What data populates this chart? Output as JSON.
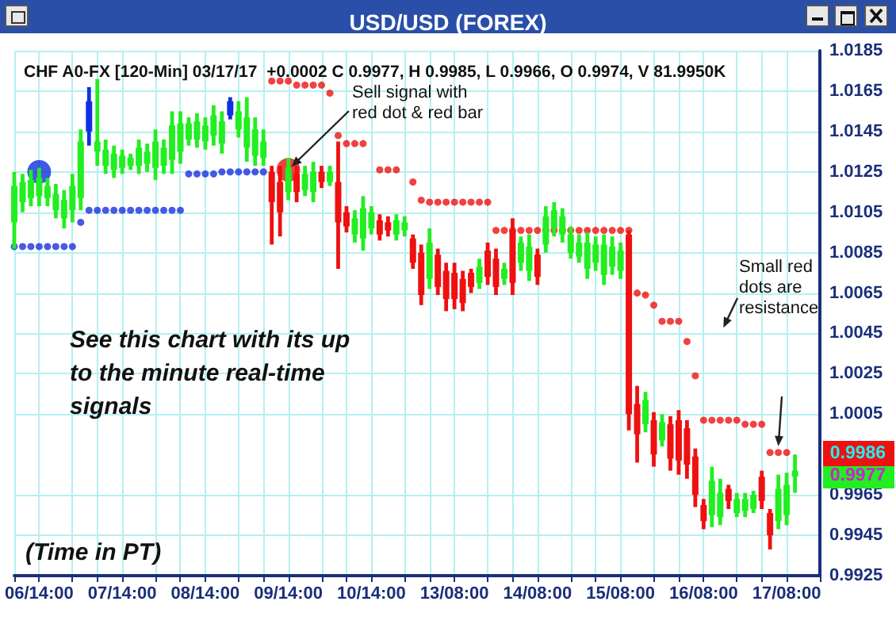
{
  "chart_data": {
    "type": "candlestick",
    "title": "USD/USD (FOREX)",
    "subtitle": "CHF A0-FX [120-Min] 03/17/17  +0.0002 C 0.9977, H 0.9985, L 0.9966, O 0.9974, V 81.9950K",
    "categories": [
      null,
      null,
      null,
      "06/14:00",
      null,
      null,
      null,
      null,
      null,
      null,
      null,
      null,
      null,
      "07/14:00",
      null,
      null,
      null,
      null,
      null,
      null,
      null,
      null,
      null,
      "08/14:00",
      null,
      null,
      null,
      null,
      null,
      null,
      null,
      null,
      null,
      "09/14:00",
      null,
      null,
      null,
      null,
      null,
      null,
      null,
      null,
      null,
      "10/14:00",
      null,
      null,
      null,
      null,
      null,
      null,
      null,
      null,
      null,
      "13/08:00",
      null,
      null,
      null,
      null,
      null,
      null,
      null,
      null,
      null,
      "14/08:00",
      null,
      null,
      null,
      null,
      null,
      null,
      null,
      null,
      null,
      "15/08:00",
      null,
      null,
      null,
      null,
      null,
      null,
      null,
      null,
      null,
      "16/08:00",
      null,
      null,
      null,
      null,
      null,
      null,
      null,
      null,
      null,
      "17/08:00",
      null,
      null,
      null,
      null
    ],
    "ohlc": [
      [
        1.01,
        1.0125,
        1.0087,
        1.0118
      ],
      [
        1.011,
        1.0124,
        1.0105,
        1.012
      ],
      [
        1.0112,
        1.0126,
        1.0108,
        1.0121
      ],
      [
        1.0113,
        1.0127,
        1.0108,
        1.0122
      ],
      [
        1.0112,
        1.0122,
        1.0108,
        1.0118
      ],
      [
        1.0106,
        1.0119,
        1.0102,
        1.0114
      ],
      [
        1.0102,
        1.0116,
        1.0097,
        1.0111
      ],
      [
        1.0106,
        1.0124,
        1.01,
        1.0118
      ],
      [
        1.0112,
        1.0146,
        1.0106,
        1.014
      ],
      [
        1.0145,
        1.0167,
        1.0138,
        1.016
      ],
      [
        1.0135,
        1.0171,
        1.0128,
        1.014
      ],
      [
        1.0128,
        1.0141,
        1.0124,
        1.0136
      ],
      [
        1.0126,
        1.0138,
        1.0122,
        1.0134
      ],
      [
        1.0127,
        1.0136,
        1.0124,
        1.0133
      ],
      [
        1.0128,
        1.0134,
        1.0126,
        1.0132
      ],
      [
        1.0128,
        1.0141,
        1.0124,
        1.0137
      ],
      [
        1.0129,
        1.0139,
        1.0125,
        1.0135
      ],
      [
        1.0127,
        1.0146,
        1.0121,
        1.014
      ],
      [
        1.0128,
        1.0141,
        1.0124,
        1.0137
      ],
      [
        1.0131,
        1.0155,
        1.0124,
        1.0148
      ],
      [
        1.0135,
        1.0155,
        1.0129,
        1.0149
      ],
      [
        1.0141,
        1.0152,
        1.0138,
        1.0149
      ],
      [
        1.0141,
        1.0154,
        1.0137,
        1.015
      ],
      [
        1.014,
        1.0152,
        1.0136,
        1.0148
      ],
      [
        1.0143,
        1.0158,
        1.0138,
        1.0153
      ],
      [
        1.0139,
        1.0155,
        1.0134,
        1.015
      ],
      [
        1.0153,
        1.0162,
        1.0151,
        1.016
      ],
      [
        1.0146,
        1.016,
        1.0142,
        1.0155
      ],
      [
        1.0137,
        1.0162,
        1.013,
        1.0152
      ],
      [
        1.0133,
        1.0152,
        1.0128,
        1.0146
      ],
      [
        1.0132,
        1.0146,
        1.0128,
        1.014
      ],
      [
        1.0125,
        1.0128,
        1.0089,
        1.011
      ],
      [
        1.012,
        1.0128,
        1.0093,
        1.0105
      ],
      [
        1.0115,
        1.0132,
        1.0111,
        1.0127
      ],
      [
        1.0124,
        1.0128,
        1.011,
        1.0115
      ],
      [
        1.0116,
        1.0128,
        1.0113,
        1.0124
      ],
      [
        1.0115,
        1.013,
        1.011,
        1.0125
      ],
      [
        1.0125,
        1.0128,
        1.0117,
        1.012
      ],
      [
        1.012,
        1.0128,
        1.0118,
        1.0125
      ],
      [
        1.012,
        1.014,
        1.0077,
        1.01
      ],
      [
        1.0105,
        1.0108,
        1.0095,
        1.0098
      ],
      [
        1.0094,
        1.0106,
        1.009,
        1.0102
      ],
      [
        1.0092,
        1.0113,
        1.0086,
        1.0107
      ],
      [
        1.0097,
        1.0108,
        1.0094,
        1.0105
      ],
      [
        1.0101,
        1.0104,
        1.0091,
        1.0094
      ],
      [
        1.01,
        1.0103,
        1.0093,
        1.0096
      ],
      [
        1.0094,
        1.0104,
        1.0091,
        1.0101
      ],
      [
        1.0096,
        1.0103,
        1.0093,
        1.01
      ],
      [
        1.0092,
        1.0094,
        1.0077,
        1.008
      ],
      [
        1.0085,
        1.0089,
        1.0059,
        1.0064
      ],
      [
        1.0072,
        1.0097,
        1.0067,
        1.009
      ],
      [
        1.0084,
        1.0087,
        1.0064,
        1.0068
      ],
      [
        1.0076,
        1.008,
        1.0056,
        1.0062
      ],
      [
        1.0075,
        1.008,
        1.0057,
        1.0062
      ],
      [
        1.0072,
        1.0076,
        1.0056,
        1.006
      ],
      [
        1.0075,
        1.0077,
        1.0065,
        1.0068
      ],
      [
        1.007,
        1.0082,
        1.0067,
        1.0078
      ],
      [
        1.0086,
        1.009,
        1.0069,
        1.0073
      ],
      [
        1.0082,
        1.0087,
        1.0064,
        1.0068
      ],
      [
        1.0072,
        1.008,
        1.0069,
        1.0077
      ],
      [
        1.0096,
        1.0102,
        1.0064,
        1.007
      ],
      [
        1.008,
        1.0093,
        1.0076,
        1.009
      ],
      [
        1.0076,
        1.0094,
        1.0071,
        1.0088
      ],
      [
        1.0084,
        1.0087,
        1.0069,
        1.0073
      ],
      [
        1.0089,
        1.0108,
        1.0085,
        1.0103
      ],
      [
        1.0097,
        1.011,
        1.0093,
        1.0106
      ],
      [
        1.0094,
        1.0107,
        1.009,
        1.0103
      ],
      [
        1.0085,
        1.0098,
        1.0082,
        1.0094
      ],
      [
        1.0083,
        1.0094,
        1.008,
        1.009
      ],
      [
        1.0077,
        1.0095,
        1.0072,
        1.009
      ],
      [
        1.008,
        1.0093,
        1.0076,
        1.0089
      ],
      [
        1.0074,
        1.0094,
        1.0069,
        1.0089
      ],
      [
        1.0078,
        1.0093,
        1.0074,
        1.0088
      ],
      [
        1.0076,
        1.009,
        1.0072,
        1.0086
      ],
      [
        1.0094,
        1.0096,
        0.9997,
        1.0005
      ],
      [
        1.001,
        1.0019,
        0.9981,
        0.9995
      ],
      [
        1.0,
        1.0016,
        0.9996,
        1.0012
      ],
      [
        1.0002,
        1.0006,
        0.9979,
        0.9985
      ],
      [
        0.9992,
        1.0005,
        0.9989,
        1.0001
      ],
      [
        1.0,
        1.0004,
        0.9977,
        0.9983
      ],
      [
        1.0002,
        1.0007,
        0.9975,
        0.9982
      ],
      [
        0.9998,
        1.0002,
        0.9973,
        0.998
      ],
      [
        0.9984,
        0.9988,
        0.9959,
        0.9965
      ],
      [
        0.996,
        0.9963,
        0.9948,
        0.9952
      ],
      [
        0.9955,
        0.9979,
        0.9949,
        0.9972
      ],
      [
        0.9954,
        0.9973,
        0.995,
        0.9966
      ],
      [
        0.9968,
        0.997,
        0.9958,
        0.9962
      ],
      [
        0.9956,
        0.9966,
        0.9954,
        0.9963
      ],
      [
        0.9957,
        0.9966,
        0.9954,
        0.9963
      ],
      [
        0.9958,
        0.9967,
        0.9956,
        0.9965
      ],
      [
        0.9974,
        0.9977,
        0.9958,
        0.9962
      ],
      [
        0.9956,
        0.9958,
        0.9938,
        0.9945
      ],
      [
        0.9952,
        0.9975,
        0.9948,
        0.9968
      ],
      [
        0.9955,
        0.9976,
        0.995,
        0.997
      ],
      [
        0.9974,
        0.9985,
        0.9966,
        0.9977
      ],
      null,
      null,
      null
    ],
    "colors": [
      "#22ee22",
      "#22ee22",
      "#22ee22",
      "#22ee22",
      "#22ee22",
      "#22ee22",
      "#22ee22",
      "#22ee22",
      "#22ee22",
      "#1030e0",
      "#22ee22",
      "#22ee22",
      "#22ee22",
      "#22ee22",
      "#22ee22",
      "#22ee22",
      "#22ee22",
      "#22ee22",
      "#22ee22",
      "#22ee22",
      "#22ee22",
      "#22ee22",
      "#22ee22",
      "#22ee22",
      "#22ee22",
      "#22ee22",
      "#1030e0",
      "#22ee22",
      "#22ee22",
      "#22ee22",
      "#22ee22",
      "#ee1111",
      "#ee1111",
      "#22ee22",
      "#ee1111",
      "#22ee22",
      "#22ee22",
      "#ee1111",
      "#22ee22",
      "#ee1111",
      "#ee1111",
      "#22ee22",
      "#22ee22",
      "#22ee22",
      "#ee1111",
      "#ee1111",
      "#22ee22",
      "#22ee22",
      "#ee1111",
      "#ee1111",
      "#22ee22",
      "#ee1111",
      "#ee1111",
      "#ee1111",
      "#ee1111",
      "#ee1111",
      "#22ee22",
      "#ee1111",
      "#ee1111",
      "#22ee22",
      "#ee1111",
      "#22ee22",
      "#22ee22",
      "#ee1111",
      "#22ee22",
      "#22ee22",
      "#22ee22",
      "#22ee22",
      "#22ee22",
      "#22ee22",
      "#22ee22",
      "#22ee22",
      "#22ee22",
      "#22ee22",
      "#ee1111",
      "#ee1111",
      "#22ee22",
      "#ee1111",
      "#22ee22",
      "#ee1111",
      "#ee1111",
      "#ee1111",
      "#ee1111",
      "#ee1111",
      "#22ee22",
      "#22ee22",
      "#ee1111",
      "#22ee22",
      "#22ee22",
      "#22ee22",
      "#ee1111",
      "#ee1111",
      "#22ee22",
      "#22ee22",
      "#22ee22",
      null,
      null,
      null
    ],
    "series": [
      {
        "type": "scatter",
        "color": "#1a2fe0",
        "values": [
          1.0088,
          1.0088,
          1.0088,
          1.0088,
          1.0088,
          1.0088,
          1.0088,
          1.0088,
          1.01,
          1.0106,
          1.0106,
          1.0106,
          1.0106,
          1.0106,
          1.0106,
          1.0106,
          1.0106,
          1.0106,
          1.0106,
          1.0106,
          1.0106,
          1.0124,
          1.0124,
          1.0124,
          1.0124,
          1.0125,
          1.0125,
          1.0125,
          1.0125,
          1.0125,
          1.0125,
          null,
          null,
          null,
          null,
          null,
          null,
          null,
          null,
          null,
          null,
          null,
          null,
          null,
          null,
          null,
          null,
          null,
          null,
          null,
          null,
          null,
          null,
          null,
          null,
          null,
          null,
          null,
          null,
          null,
          null,
          null,
          null,
          null,
          null,
          null,
          null,
          null,
          null,
          null,
          null,
          null,
          null,
          null,
          null,
          null,
          null,
          null,
          null,
          null,
          null,
          null,
          null,
          null,
          null,
          null,
          null,
          null,
          null,
          null,
          null,
          null,
          null,
          null,
          null,
          null,
          null,
          null
        ]
      },
      {
        "type": "scatter",
        "color": "#ee1111",
        "values": [
          null,
          null,
          null,
          null,
          null,
          null,
          null,
          null,
          null,
          null,
          null,
          null,
          null,
          null,
          null,
          null,
          null,
          null,
          null,
          null,
          null,
          null,
          null,
          null,
          null,
          null,
          null,
          null,
          null,
          null,
          null,
          1.017,
          1.017,
          1.017,
          1.0168,
          1.0168,
          1.0168,
          1.0168,
          1.0164,
          1.0143,
          1.0139,
          1.0139,
          1.0139,
          null,
          1.0126,
          1.0126,
          1.0126,
          null,
          1.012,
          1.0111,
          1.011,
          1.011,
          1.011,
          1.011,
          1.011,
          1.011,
          1.011,
          1.011,
          1.0096,
          1.0096,
          1.0096,
          1.0096,
          1.0096,
          1.0096,
          1.0096,
          1.0096,
          1.0096,
          1.0096,
          1.0096,
          1.0096,
          1.0096,
          1.0096,
          1.0096,
          1.0096,
          1.0096,
          1.0065,
          1.0064,
          1.0059,
          1.0051,
          1.0051,
          1.0051,
          1.0041,
          1.0024,
          1.0002,
          1.0002,
          1.0002,
          1.0002,
          1.0002,
          1.0,
          1.0,
          1.0,
          0.9986,
          0.9986,
          0.9986,
          null,
          null,
          null,
          null
        ]
      },
      {
        "type": "bubble",
        "colors": [
          "#1030e0",
          "#ee1111"
        ],
        "x": [
          "06/14:00",
          "09/14:00"
        ],
        "values": [
          1.0125,
          1.0126
        ],
        "sizes": [
          1,
          1
        ]
      }
    ],
    "ylim": [
      0.9925,
      1.0185
    ],
    "yticks": [
      1.0185,
      1.0165,
      1.0145,
      1.0125,
      1.0105,
      1.0085,
      1.0065,
      1.0045,
      1.0025,
      1.0005,
      0.9965,
      0.9945,
      0.9925
    ],
    "grid": true,
    "annotations": [
      {
        "text": "Sell signal with red dot & red bar",
        "x": "09/14:00",
        "y": 1.0126
      },
      "Small red dots are resistance",
      "See this chart with its up to the minute real-time signals",
      "(Time in PT)",
      "0.9986",
      "0.9977"
    ]
  }
}
